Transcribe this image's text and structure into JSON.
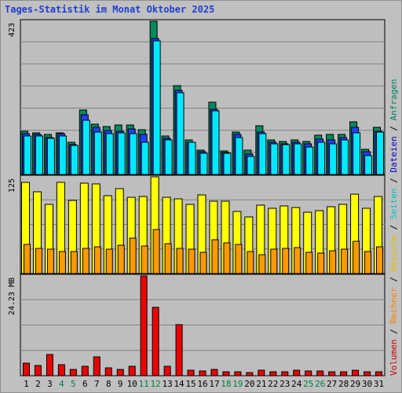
{
  "title": "Tages-Statistik im Monat Oktober 2025",
  "legend_right": [
    {
      "label": "Volumen",
      "color": "#cc0000"
    },
    {
      "label": "Rechner",
      "color": "#ff8000"
    },
    {
      "label": "Besuche",
      "color": "#e0c000"
    },
    {
      "label": "Seiten",
      "color": "#00bfbf"
    },
    {
      "label": "Dateien",
      "color": "#0000d0"
    },
    {
      "label": "Anfragen",
      "color": "#008060"
    }
  ],
  "separator": "/",
  "colors": {
    "anfragen": "#008a5e",
    "dateien": "#1f3fff",
    "seiten": "#00e8ff",
    "besuche": "#ffff00",
    "rechner": "#ff9900",
    "volumen": "#ee0000",
    "weekend_label": "#008040",
    "weekday_label": "#000000"
  },
  "chart_data": [
    {
      "type": "bar",
      "name": "top-panel",
      "ylabel": "423",
      "ylim": [
        0,
        423
      ],
      "categories": [
        "1",
        "2",
        "3",
        "4",
        "5",
        "6",
        "7",
        "8",
        "9",
        "10",
        "11",
        "12",
        "13",
        "14",
        "15",
        "16",
        "17",
        "18",
        "19",
        "20",
        "21",
        "22",
        "23",
        "24",
        "25",
        "26",
        "27",
        "28",
        "29",
        "30",
        "31"
      ],
      "series": [
        {
          "name": "Anfragen",
          "values": [
            120,
            116,
            110,
            116,
            88,
            178,
            138,
            132,
            136,
            136,
            123,
            423,
            106,
            246,
            96,
            68,
            200,
            66,
            117,
            67,
            135,
            95,
            92,
            96,
            91,
            108,
            110,
            111,
            146,
            69,
            130
          ]
        },
        {
          "name": "Dateien",
          "values": [
            112,
            110,
            102,
            113,
            82,
            165,
            130,
            122,
            120,
            125,
            110,
            376,
            100,
            232,
            90,
            63,
            180,
            60,
            110,
            56,
            118,
            88,
            85,
            90,
            84,
            98,
            96,
            102,
            130,
            63,
            120
          ]
        },
        {
          "name": "Seiten",
          "values": [
            106,
            106,
            100,
            106,
            80,
            149,
            117,
            112,
            115,
            112,
            90,
            369,
            95,
            226,
            90,
            59,
            175,
            59,
            103,
            50,
            112,
            84,
            83,
            85,
            77,
            90,
            84,
            96,
            116,
            53,
            117
          ]
        }
      ]
    },
    {
      "type": "bar",
      "name": "middle-panel",
      "ylabel": "125",
      "ylim": [
        0,
        125
      ],
      "categories": [
        "1",
        "2",
        "3",
        "4",
        "5",
        "6",
        "7",
        "8",
        "9",
        "10",
        "11",
        "12",
        "13",
        "14",
        "15",
        "16",
        "17",
        "18",
        "19",
        "20",
        "21",
        "22",
        "23",
        "24",
        "25",
        "26",
        "27",
        "28",
        "29",
        "30",
        "31"
      ],
      "series": [
        {
          "name": "Besuche",
          "values": [
            118,
            106,
            89,
            118,
            95,
            117,
            116,
            101,
            110,
            99,
            100,
            125,
            99,
            97,
            89,
            102,
            93,
            94,
            80,
            73,
            88,
            84,
            87,
            85,
            79,
            81,
            86,
            89,
            103,
            84,
            100
          ]
        },
        {
          "name": "Rechner",
          "values": [
            38,
            33,
            32,
            28,
            28,
            33,
            35,
            31,
            37,
            46,
            36,
            57,
            39,
            33,
            31,
            27,
            44,
            40,
            38,
            28,
            24,
            32,
            33,
            34,
            27,
            26,
            29,
            31,
            42,
            28,
            35
          ]
        }
      ]
    },
    {
      "type": "bar",
      "name": "bottom-panel",
      "ylabel": "24.23 MB",
      "ylim": [
        0,
        24.23
      ],
      "categories": [
        "1",
        "2",
        "3",
        "4",
        "5",
        "6",
        "7",
        "8",
        "9",
        "10",
        "11",
        "12",
        "13",
        "14",
        "15",
        "16",
        "17",
        "18",
        "19",
        "20",
        "21",
        "22",
        "23",
        "24",
        "25",
        "26",
        "27",
        "28",
        "29",
        "30",
        "31"
      ],
      "series": [
        {
          "name": "Volumen",
          "values": [
            3.0,
            2.4,
            5.2,
            2.6,
            1.6,
            2.2,
            4.6,
            2.0,
            1.5,
            2.3,
            24.23,
            16.6,
            2.3,
            12.4,
            1.3,
            1.1,
            1.6,
            0.9,
            0.9,
            0.8,
            1.3,
            1.0,
            1.0,
            1.4,
            1.2,
            1.1,
            1.0,
            1.0,
            1.3,
            1.0,
            1.0
          ]
        }
      ]
    }
  ],
  "weekend_days": [
    "4",
    "5",
    "11",
    "12",
    "18",
    "19",
    "25",
    "26"
  ]
}
